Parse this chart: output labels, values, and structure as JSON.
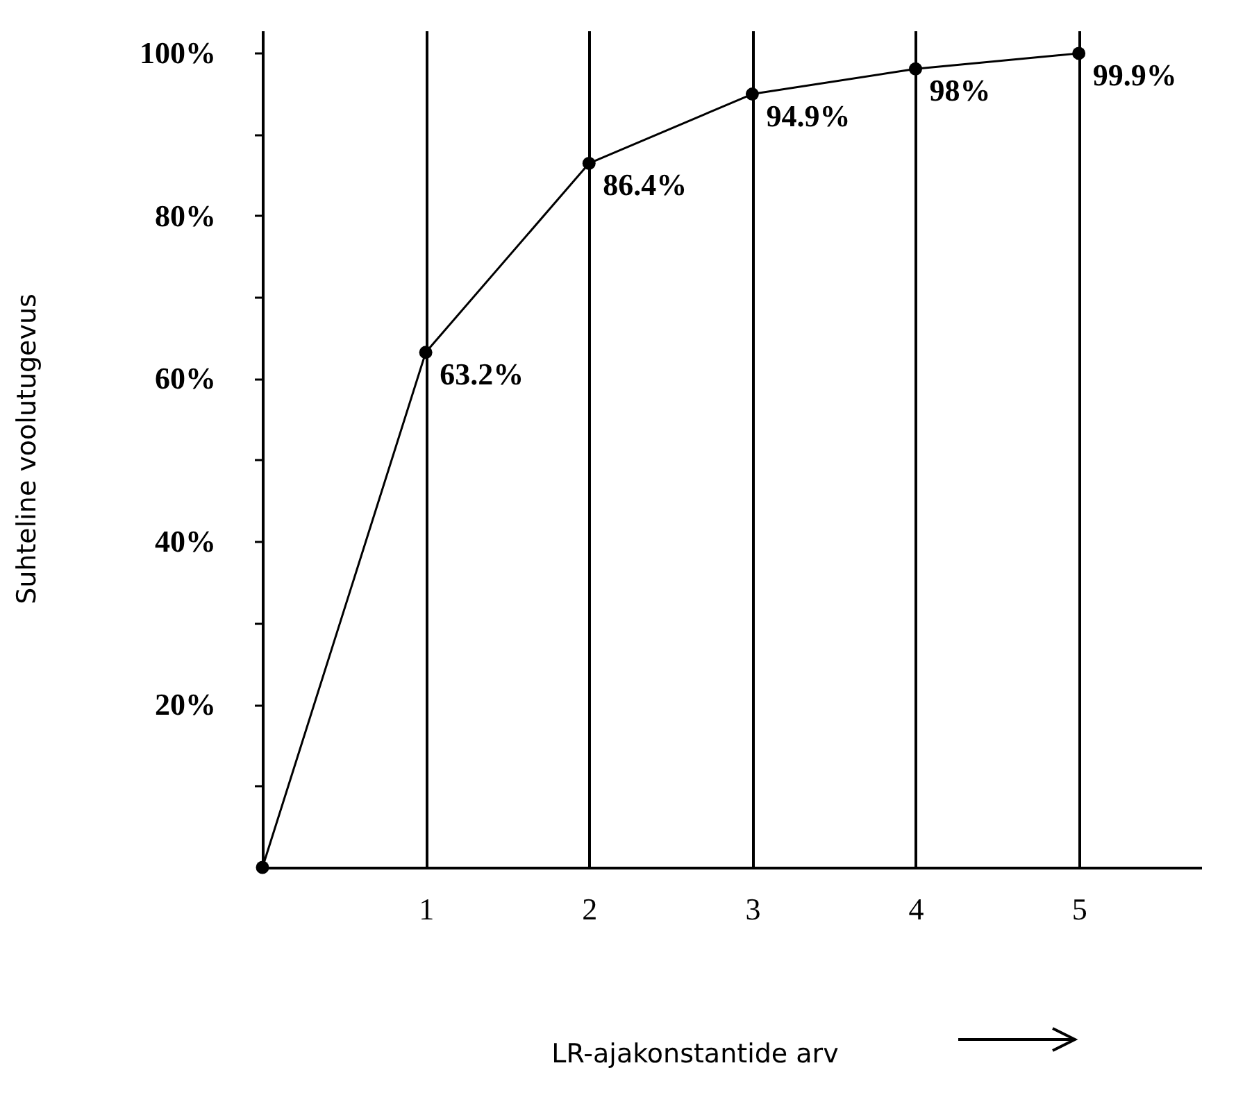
{
  "chart_data": {
    "type": "line",
    "xlabel": "LR-ajakonstantide arv",
    "ylabel": "Suhteline voolutugevus",
    "x": [
      0,
      1,
      2,
      3,
      4,
      5
    ],
    "series": [
      {
        "color": "#000000",
        "values": [
          0,
          63.2,
          86.4,
          94.9,
          98,
          99.9
        ],
        "value_labels": [
          null,
          "63.2%",
          "86.4%",
          "94.9%",
          "98%",
          "99.9%"
        ]
      }
    ],
    "xlim": [
      0,
      5.75
    ],
    "xticks": [
      1,
      2,
      3,
      4,
      5
    ],
    "ylim": [
      0,
      102.7
    ],
    "yticks": [
      {
        "value": 10,
        "label": null
      },
      {
        "value": 20,
        "label": "20%"
      },
      {
        "value": 30,
        "label": null
      },
      {
        "value": 40,
        "label": "40%"
      },
      {
        "value": 50,
        "label": null
      },
      {
        "value": 60,
        "label": "60%"
      },
      {
        "value": 70,
        "label": null
      },
      {
        "value": 80,
        "label": "80%"
      },
      {
        "value": 90,
        "label": null
      },
      {
        "value": 100,
        "label": "100%"
      }
    ],
    "grid": "x",
    "marker": "circle",
    "line_style": "solid"
  }
}
